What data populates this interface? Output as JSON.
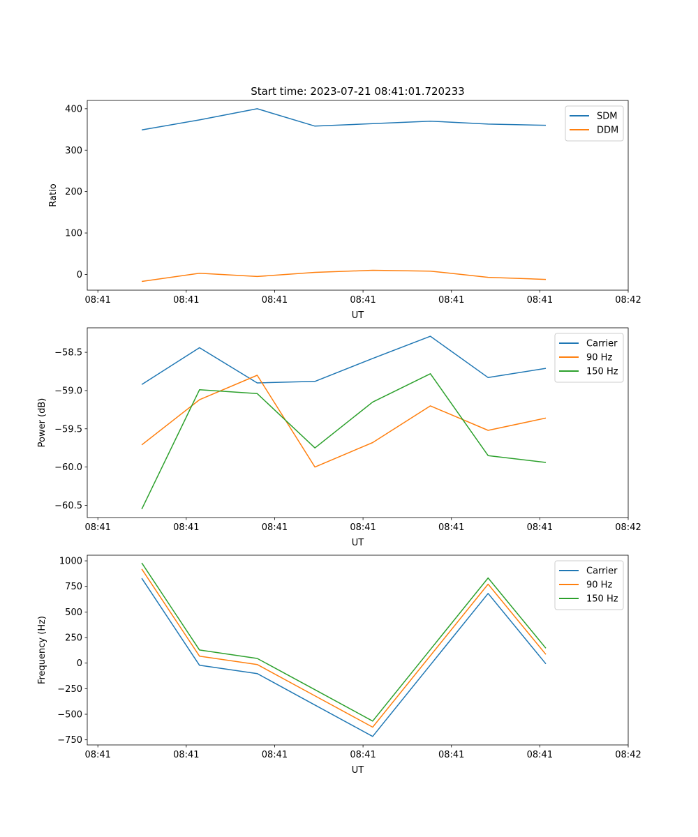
{
  "chart_data": [
    {
      "type": "line",
      "title": "Start time: 2023-07-21 08:41:01.720233",
      "xlabel": "UT",
      "ylabel": "Ratio",
      "x": [
        0.497,
        1.15,
        1.803,
        2.456,
        3.109,
        3.762,
        4.415,
        5.068
      ],
      "xlim": [
        -0.12,
        6
      ],
      "xticks": [
        0,
        1,
        2,
        3,
        4,
        5,
        6
      ],
      "xtick_labels": [
        "08:41",
        "08:41",
        "08:41",
        "08:41",
        "08:41",
        "08:41",
        "08:42"
      ],
      "ylim": [
        -38,
        420
      ],
      "yticks": [
        0,
        100,
        200,
        300,
        400
      ],
      "ytick_labels": [
        "0",
        "100",
        "200",
        "300",
        "400"
      ],
      "legend": "top-right",
      "series": [
        {
          "name": "SDM",
          "color": "#1f77b4",
          "values": [
            349,
            373,
            400,
            358,
            364,
            370,
            363,
            360
          ]
        },
        {
          "name": "DDM",
          "color": "#ff7f0e",
          "values": [
            -17,
            3,
            -5,
            5,
            10,
            8,
            -7,
            -12
          ]
        }
      ]
    },
    {
      "type": "line",
      "xlabel": "UT",
      "ylabel": "Power (dB)",
      "x": [
        0.497,
        1.15,
        1.803,
        2.456,
        3.109,
        3.762,
        4.415,
        5.068
      ],
      "xlim": [
        -0.12,
        6
      ],
      "xticks": [
        0,
        1,
        2,
        3,
        4,
        5,
        6
      ],
      "xtick_labels": [
        "08:41",
        "08:41",
        "08:41",
        "08:41",
        "08:41",
        "08:41",
        "08:42"
      ],
      "ylim": [
        -60.66,
        -58.18
      ],
      "yticks": [
        -60.5,
        -60.0,
        -59.5,
        -59.0,
        -58.5
      ],
      "ytick_labels": [
        "−60.5",
        "−60.0",
        "−59.5",
        "−59.0",
        "−58.5"
      ],
      "legend": "top-right",
      "series": [
        {
          "name": "Carrier",
          "color": "#1f77b4",
          "values": [
            -58.92,
            -58.44,
            -58.9,
            -58.88,
            -58.58,
            -58.29,
            -58.83,
            -58.71
          ]
        },
        {
          "name": "90 Hz",
          "color": "#ff7f0e",
          "values": [
            -59.71,
            -59.12,
            -58.8,
            -60.0,
            -59.68,
            -59.2,
            -59.52,
            -59.36
          ]
        },
        {
          "name": "150 Hz",
          "color": "#2ca02c",
          "values": [
            -60.55,
            -58.99,
            -59.04,
            -59.75,
            -59.15,
            -58.78,
            -59.85,
            -59.94
          ]
        }
      ]
    },
    {
      "type": "line",
      "xlabel": "UT",
      "ylabel": "Frequency (Hz)",
      "x": [
        0.497,
        1.15,
        1.803,
        2.456,
        3.109,
        3.762,
        4.415,
        5.068
      ],
      "xlim": [
        -0.12,
        6
      ],
      "xticks": [
        0,
        1,
        2,
        3,
        4,
        5,
        6
      ],
      "xtick_labels": [
        "08:41",
        "08:41",
        "08:41",
        "08:41",
        "08:41",
        "08:41",
        "08:42"
      ],
      "ylim": [
        -800,
        1055
      ],
      "yticks": [
        -750,
        -500,
        -250,
        0,
        250,
        500,
        750,
        1000
      ],
      "ytick_labels": [
        "−750",
        "−500",
        "−250",
        "0",
        "250",
        "500",
        "750",
        "1000"
      ],
      "legend": "top-right",
      "series": [
        {
          "name": "Carrier",
          "color": "#1f77b4",
          "values": [
            829,
            -21,
            -102,
            -410,
            -717,
            -18,
            681,
            -7
          ]
        },
        {
          "name": "90 Hz",
          "color": "#ff7f0e",
          "values": [
            920,
            68,
            -14,
            -320,
            -626,
            73,
            772,
            85
          ]
        },
        {
          "name": "150 Hz",
          "color": "#2ca02c",
          "values": [
            979,
            128,
            46,
            -260,
            -567,
            133,
            833,
            146
          ]
        }
      ]
    }
  ]
}
